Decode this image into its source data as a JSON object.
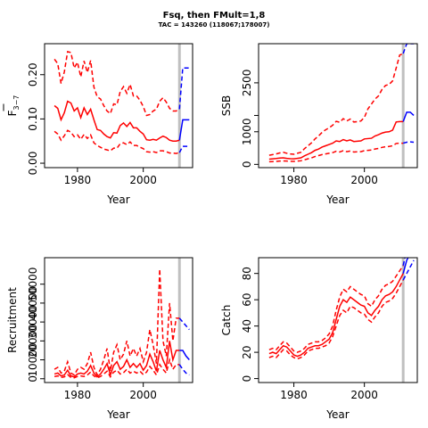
{
  "figure": {
    "title": "Fsq, then FMult=1,8",
    "subtitle": "TAC = 143260 (118067;178007)",
    "last_data_year": 2011,
    "colors": {
      "historical": "#ff0000",
      "projection": "#0000ff",
      "marker": "#c0c0c0"
    }
  },
  "chart_data": [
    {
      "id": "fbar",
      "type": "line",
      "xlabel": "Year",
      "ylabel_main": "F",
      "ylabel_sub": "3−7",
      "xlim": [
        1970,
        2015
      ],
      "ylim": [
        -0.01,
        0.27
      ],
      "x_ticks": [
        1980,
        2000
      ],
      "y_ticks": [
        0.0,
        0.1,
        0.2
      ],
      "y_tick_labels": [
        "0.00",
        "0.10",
        "0.20"
      ],
      "historical": {
        "x": [
          1973,
          1974,
          1975,
          1976,
          1977,
          1978,
          1979,
          1980,
          1981,
          1982,
          1983,
          1984,
          1985,
          1986,
          1987,
          1988,
          1989,
          1990,
          1991,
          1992,
          1993,
          1994,
          1995,
          1996,
          1997,
          1998,
          1999,
          2000,
          2001,
          2002,
          2003,
          2004,
          2005,
          2006,
          2007,
          2008,
          2009,
          2010,
          2011
        ],
        "median": [
          0.13,
          0.124,
          0.098,
          0.114,
          0.14,
          0.136,
          0.118,
          0.125,
          0.103,
          0.125,
          0.11,
          0.122,
          0.098,
          0.076,
          0.074,
          0.066,
          0.06,
          0.057,
          0.069,
          0.068,
          0.085,
          0.091,
          0.083,
          0.092,
          0.08,
          0.08,
          0.072,
          0.066,
          0.053,
          0.052,
          0.054,
          0.052,
          0.057,
          0.061,
          0.058,
          0.052,
          0.05,
          0.05,
          0.052
        ],
        "lower": [
          0.072,
          0.066,
          0.052,
          0.062,
          0.074,
          0.07,
          0.06,
          0.064,
          0.054,
          0.065,
          0.056,
          0.064,
          0.046,
          0.04,
          0.036,
          0.032,
          0.03,
          0.028,
          0.034,
          0.034,
          0.044,
          0.046,
          0.042,
          0.048,
          0.04,
          0.04,
          0.036,
          0.033,
          0.026,
          0.025,
          0.026,
          0.024,
          0.028,
          0.028,
          0.026,
          0.023,
          0.023,
          0.022,
          0.024
        ],
        "upper": [
          0.235,
          0.225,
          0.18,
          0.206,
          0.252,
          0.25,
          0.215,
          0.228,
          0.195,
          0.231,
          0.205,
          0.232,
          0.172,
          0.15,
          0.145,
          0.13,
          0.118,
          0.112,
          0.134,
          0.132,
          0.162,
          0.173,
          0.158,
          0.178,
          0.152,
          0.152,
          0.142,
          0.128,
          0.108,
          0.11,
          0.118,
          0.122,
          0.14,
          0.148,
          0.138,
          0.124,
          0.118,
          0.118,
          0.122
        ]
      },
      "projection": {
        "x": [
          2011,
          2012,
          2013,
          2014
        ],
        "median": [
          0.052,
          0.098,
          0.098,
          0.098
        ],
        "lower": [
          0.024,
          0.038,
          0.038,
          0.038
        ],
        "upper": [
          0.122,
          0.215,
          0.215,
          0.215
        ]
      }
    },
    {
      "id": "ssb",
      "type": "line",
      "xlabel": "Year",
      "ylabel": "SSB",
      "xlim": [
        1970,
        2015
      ],
      "ylim": [
        -100,
        3700
      ],
      "x_ticks": [
        1980,
        2000
      ],
      "y_ticks": [
        0,
        1000,
        1500,
        2500
      ],
      "y_tick_labels": [
        "0",
        "1000",
        "",
        "2500"
      ],
      "historical": {
        "x": [
          1973,
          1974,
          1975,
          1976,
          1977,
          1978,
          1979,
          1980,
          1981,
          1982,
          1983,
          1984,
          1985,
          1986,
          1987,
          1988,
          1989,
          1990,
          1991,
          1992,
          1993,
          1994,
          1995,
          1996,
          1997,
          1998,
          1999,
          2000,
          2001,
          2002,
          2003,
          2004,
          2005,
          2006,
          2007,
          2008,
          2009,
          2010,
          2011
        ],
        "median": [
          160,
          170,
          180,
          195,
          200,
          185,
          175,
          170,
          185,
          200,
          260,
          310,
          360,
          430,
          470,
          530,
          570,
          610,
          650,
          720,
          700,
          760,
          720,
          750,
          700,
          710,
          720,
          780,
          790,
          800,
          870,
          910,
          960,
          990,
          1000,
          1050,
          1300,
          1310,
          1310
        ],
        "lower": [
          80,
          85,
          90,
          100,
          105,
          100,
          95,
          90,
          100,
          110,
          140,
          170,
          200,
          240,
          270,
          300,
          320,
          340,
          360,
          400,
          380,
          420,
          390,
          410,
          380,
          385,
          390,
          420,
          430,
          440,
          470,
          490,
          520,
          540,
          550,
          570,
          640,
          650,
          650
        ],
        "upper": [
          280,
          300,
          320,
          350,
          370,
          340,
          320,
          310,
          340,
          370,
          480,
          570,
          660,
          780,
          870,
          980,
          1060,
          1120,
          1200,
          1320,
          1290,
          1400,
          1330,
          1390,
          1300,
          1310,
          1330,
          1440,
          1700,
          1850,
          2000,
          2100,
          2300,
          2420,
          2450,
          2560,
          2950,
          3350,
          3400
        ]
      },
      "projection": {
        "x": [
          2011,
          2012,
          2013,
          2014
        ],
        "median": [
          1310,
          1600,
          1600,
          1500
        ],
        "lower": [
          650,
          680,
          690,
          680
        ],
        "upper": [
          3400,
          3700,
          3700,
          3700
        ]
      }
    },
    {
      "id": "recruitment",
      "type": "line",
      "xlabel": "Year",
      "ylabel": "Recruitment",
      "xlim": [
        1970,
        2015
      ],
      "ylim": [
        -2000,
        64000
      ],
      "x_ticks": [
        1980,
        2000
      ],
      "y_ticks": [
        0,
        10000,
        20000,
        30000,
        40000,
        50000
      ],
      "y_tick_labels": [
        "0",
        "10000",
        "20000",
        "30000",
        "40000",
        "50000"
      ],
      "historical": {
        "x": [
          1973,
          1974,
          1975,
          1976,
          1977,
          1978,
          1979,
          1980,
          1981,
          1982,
          1983,
          1984,
          1985,
          1986,
          1987,
          1988,
          1989,
          1990,
          1991,
          1992,
          1993,
          1994,
          1995,
          1996,
          1997,
          1998,
          1999,
          2000,
          2001,
          2002,
          2003,
          2004,
          2005,
          2006,
          2007,
          2008,
          2009,
          2010,
          2011
        ],
        "median": [
          2500,
          3000,
          1500,
          2000,
          4500,
          1500,
          1000,
          2500,
          3000,
          2500,
          4000,
          7000,
          3000,
          1000,
          2500,
          5000,
          8000,
          2000,
          7000,
          9000,
          5000,
          6500,
          10000,
          6000,
          8000,
          6000,
          8000,
          4500,
          7000,
          13000,
          9000,
          4000,
          15000,
          10000,
          6000,
          20000,
          10000,
          15000,
          15000
        ],
        "lower": [
          1200,
          1500,
          700,
          1000,
          2200,
          700,
          500,
          1200,
          1500,
          1200,
          2000,
          3500,
          1500,
          500,
          1200,
          2500,
          4000,
          1000,
          3500,
          4500,
          2500,
          3200,
          5000,
          3000,
          4000,
          3000,
          4000,
          2200,
          3500,
          6500,
          4500,
          2000,
          7500,
          5000,
          3000,
          10000,
          5000,
          7500,
          7500
        ],
        "upper": [
          5000,
          6000,
          3000,
          4000,
          9000,
          3000,
          2000,
          5000,
          6000,
          5000,
          8000,
          14000,
          6000,
          2000,
          5000,
          10000,
          16000,
          4000,
          14000,
          18000,
          10000,
          13000,
          20000,
          12000,
          16000,
          12000,
          16000,
          9000,
          14000,
          26000,
          18000,
          8000,
          58000,
          20000,
          12000,
          40000,
          20000,
          32000,
          32000
        ]
      },
      "projection": {
        "x": [
          2011,
          2012,
          2013,
          2014
        ],
        "median": [
          15000,
          15000,
          12000,
          10000
        ],
        "lower": [
          7500,
          5000,
          3000,
          2000
        ],
        "upper": [
          32000,
          30000,
          28000,
          26000
        ]
      }
    },
    {
      "id": "catch",
      "type": "line",
      "xlabel": "Year",
      "ylabel": "Catch",
      "xlim": [
        1970,
        2015
      ],
      "ylim": [
        -3,
        92
      ],
      "x_ticks": [
        1980,
        2000
      ],
      "y_ticks": [
        0,
        20,
        40,
        60,
        80
      ],
      "y_tick_labels": [
        "0",
        "20",
        "40",
        "60",
        "80"
      ],
      "historical": {
        "x": [
          1973,
          1974,
          1975,
          1976,
          1977,
          1978,
          1979,
          1980,
          1981,
          1982,
          1983,
          1984,
          1985,
          1986,
          1987,
          1988,
          1989,
          1990,
          1991,
          1992,
          1993,
          1994,
          1995,
          1996,
          1997,
          1998,
          1999,
          2000,
          2001,
          2002,
          2003,
          2004,
          2005,
          2006,
          2007,
          2008,
          2009,
          2010,
          2011
        ],
        "median": [
          19,
          20,
          19,
          22,
          25,
          24,
          21,
          18,
          17,
          18,
          20,
          23,
          24,
          25,
          25,
          26,
          28,
          30,
          35,
          45,
          55,
          60,
          58,
          62,
          60,
          58,
          56,
          55,
          50,
          48,
          52,
          55,
          60,
          63,
          64,
          66,
          70,
          75,
          80
        ],
        "lower": [
          16,
          17,
          16,
          19,
          22,
          21,
          18,
          16,
          15,
          16,
          18,
          21,
          22,
          23,
          23,
          24,
          25,
          27,
          32,
          40,
          48,
          52,
          50,
          55,
          54,
          52,
          50,
          49,
          45,
          43,
          47,
          50,
          55,
          58,
          59,
          61,
          65,
          70,
          75
        ],
        "upper": [
          22,
          23,
          22,
          25,
          28,
          27,
          24,
          21,
          20,
          21,
          23,
          26,
          27,
          28,
          28,
          29,
          31,
          34,
          40,
          52,
          62,
          68,
          66,
          70,
          68,
          66,
          64,
          63,
          57,
          55,
          60,
          63,
          68,
          71,
          72,
          74,
          78,
          82,
          86
        ]
      },
      "projection": {
        "x": [
          2011,
          2012,
          2013,
          2014
        ],
        "median": [
          80,
          90,
          95,
          100
        ],
        "lower": [
          75,
          80,
          85,
          90
        ],
        "upper": [
          86,
          98,
          102,
          110
        ]
      }
    }
  ]
}
